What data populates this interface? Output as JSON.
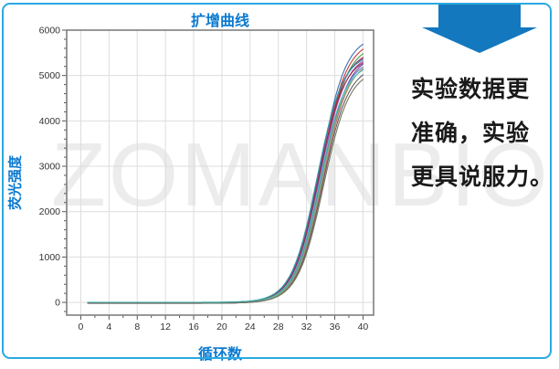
{
  "watermark": "ZOMANBIO",
  "colors": {
    "border": "#2AA9E1",
    "accent_blue": "#0A7AD0",
    "arrow_blue": "#1478BE",
    "grid": "#DDDDDD",
    "axis": "#7F7F7F",
    "tick_text": "#333333",
    "watermark": "#ECECEC"
  },
  "chart_data": {
    "type": "line",
    "title": "扩增曲线",
    "xlabel": "循环数",
    "ylabel": "荧光强度",
    "xlim": [
      -2,
      41.5
    ],
    "ylim": [
      -280,
      6000
    ],
    "x_major_ticks": [
      0,
      4,
      8,
      12,
      16,
      20,
      24,
      28,
      32,
      36,
      40
    ],
    "x_minor_step": 2,
    "y_major_ticks": [
      0,
      1000,
      2000,
      3000,
      4000,
      5000,
      6000
    ],
    "y_minor_step": 200,
    "grid": true,
    "legend": "none",
    "cycle_range": [
      1,
      40
    ],
    "baseline_value": 0,
    "steepness": 0.55,
    "series": [
      {
        "color": "#3B6FB5",
        "plateau": 5900,
        "midpoint_cycle": 33.9,
        "baseline": -10
      },
      {
        "color": "#C83A3A",
        "plateau": 5800,
        "midpoint_cycle": 34.0,
        "baseline": -15
      },
      {
        "color": "#3E9E4D",
        "plateau": 5700,
        "midpoint_cycle": 34.1,
        "baseline": -5
      },
      {
        "color": "#C0392B",
        "plateau": 5600,
        "midpoint_cycle": 33.8,
        "baseline": -20
      },
      {
        "color": "#8E3DA6",
        "plateau": 5550,
        "midpoint_cycle": 33.6,
        "baseline": -10
      },
      {
        "color": "#B23A9E",
        "plateau": 5500,
        "midpoint_cycle": 33.9,
        "baseline": 0
      },
      {
        "color": "#6D4EA0",
        "plateau": 5480,
        "midpoint_cycle": 34.2,
        "baseline": -12
      },
      {
        "color": "#8C3050",
        "plateau": 5450,
        "midpoint_cycle": 33.7,
        "baseline": -8
      },
      {
        "color": "#5F86C4",
        "plateau": 5400,
        "midpoint_cycle": 34.0,
        "baseline": -18
      },
      {
        "color": "#D06060",
        "plateau": 5380,
        "midpoint_cycle": 34.3,
        "baseline": -5
      },
      {
        "color": "#79B86B",
        "plateau": 5350,
        "midpoint_cycle": 34.1,
        "baseline": -14
      },
      {
        "color": "#56BFC8",
        "plateau": 5300,
        "midpoint_cycle": 33.8,
        "baseline": -10
      },
      {
        "color": "#5B5F66",
        "plateau": 5250,
        "midpoint_cycle": 34.3,
        "baseline": -16
      },
      {
        "color": "#75795F",
        "plateau": 5150,
        "midpoint_cycle": 34.4,
        "baseline": -8
      },
      {
        "color": "#2CA3A0",
        "plateau": 5500,
        "midpoint_cycle": 33.5,
        "baseline": 2
      }
    ]
  },
  "panel": {
    "arrow_icon": "down-arrow",
    "lines": [
      "实验数据更",
      "准确，实验",
      "更具说服力。"
    ]
  }
}
